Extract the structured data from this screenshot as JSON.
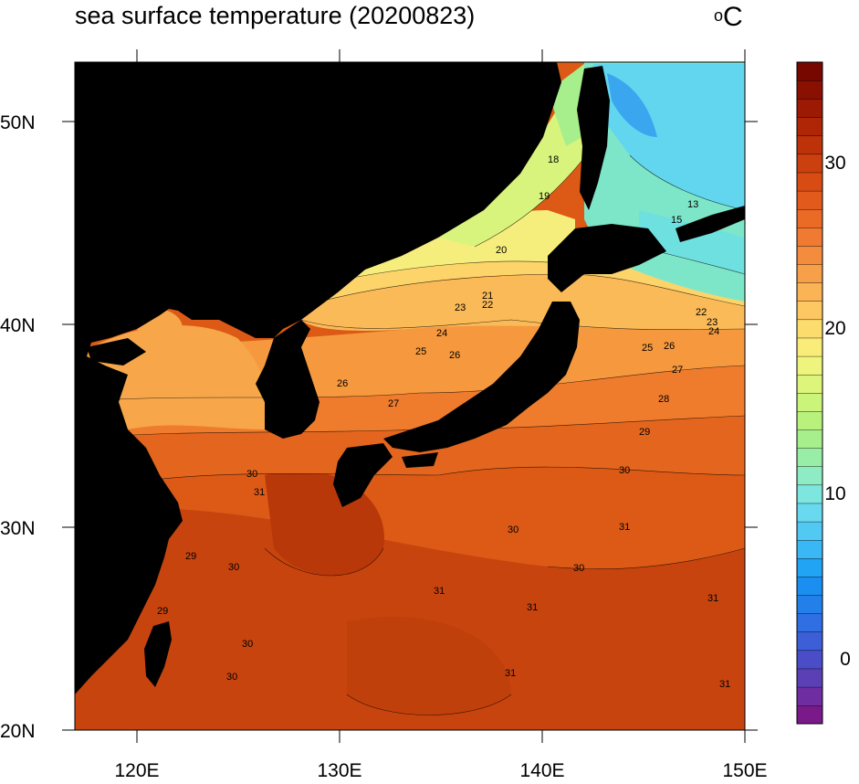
{
  "map": {
    "title": "sea surface temperature (20200823)",
    "unit_label": "C",
    "unit_superscript": "o",
    "lon_ticks": [
      "120E",
      "130E",
      "140E",
      "150E"
    ],
    "lat_ticks": [
      "50N",
      "40N",
      "30N",
      "20N"
    ],
    "extent": {
      "lon": [
        117,
        150
      ],
      "lat": [
        20,
        53
      ]
    },
    "land_color": "#000000"
  },
  "colorbar": {
    "min": -4,
    "max": 36,
    "tick_labels": [
      "30",
      "20",
      "10",
      "0"
    ],
    "tick_values": [
      30,
      20,
      10,
      0
    ],
    "colors": [
      "#7a1a8a",
      "#6e2ea2",
      "#5b3fb5",
      "#4a4cc8",
      "#3c5ed7",
      "#2f6fe3",
      "#237fea",
      "#1a8ff0",
      "#22a4f4",
      "#3ab8f5",
      "#52c9f3",
      "#68d9ee",
      "#7de6df",
      "#8eecc4",
      "#98eea6",
      "#a6ef8c",
      "#b8f27c",
      "#cbf47a",
      "#def57c",
      "#eef47c",
      "#f9ec78",
      "#fddc6e",
      "#fdc862",
      "#fab456",
      "#f7a04a",
      "#f48c3e",
      "#f07a32",
      "#ea6a26",
      "#e25a1c",
      "#d84c14",
      "#cc3f0e",
      "#be320a",
      "#ae2606",
      "#9c1a04",
      "#8a1002",
      "#760800"
    ]
  },
  "contour_labels": [
    "18",
    "19",
    "20",
    "21",
    "22",
    "23",
    "24",
    "25",
    "26",
    "27",
    "28",
    "29",
    "30",
    "31",
    "13",
    "15",
    "22",
    "23",
    "24",
    "25",
    "26",
    "27",
    "28",
    "29",
    "30",
    "31",
    "30",
    "31",
    "30",
    "29",
    "30",
    "29",
    "30",
    "31",
    "31",
    "30"
  ]
}
